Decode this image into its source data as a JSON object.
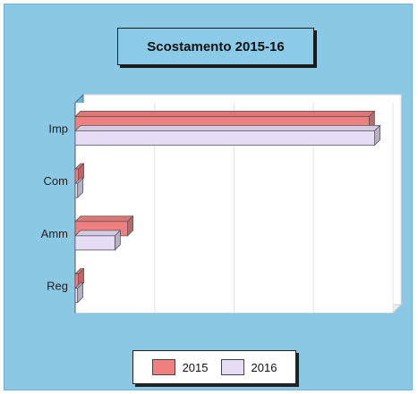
{
  "chart_data": {
    "type": "bar",
    "orientation": "horizontal",
    "title": "Scostamento 2015-16",
    "categories": [
      "Imp",
      "Com",
      "Amm",
      "Reg"
    ],
    "series": [
      {
        "name": "2015",
        "values": [
          370,
          4,
          66,
          4
        ],
        "color": "#f08080"
      },
      {
        "name": "2016",
        "values": [
          377,
          3,
          50,
          3
        ],
        "color": "#e6dcf5"
      }
    ],
    "xlim": [
      0,
      400
    ],
    "grid": true,
    "three_d": true,
    "legend_position": "bottom"
  }
}
